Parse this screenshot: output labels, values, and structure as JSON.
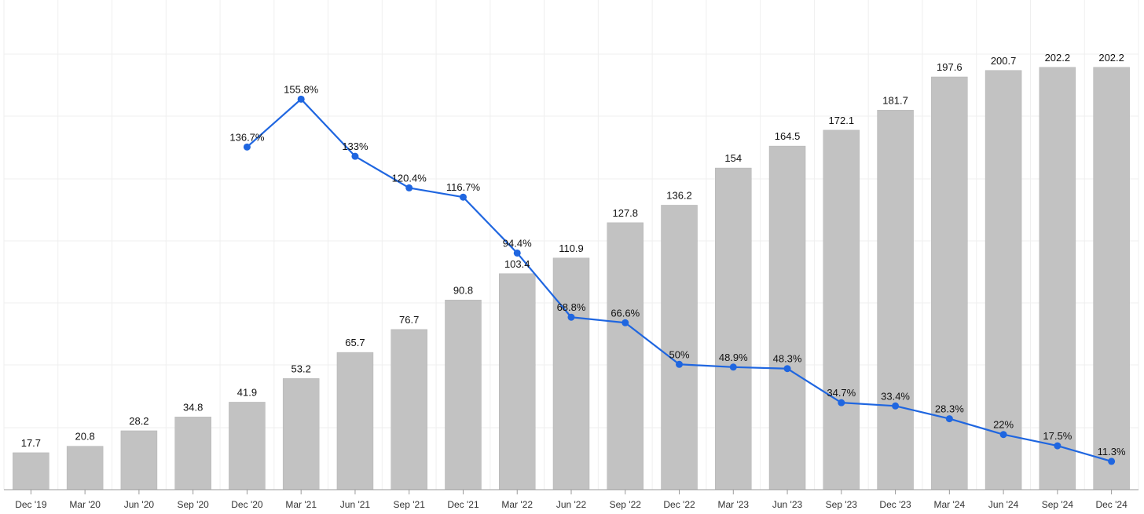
{
  "chart_data": {
    "type": "bar",
    "title": "",
    "xlabel": "",
    "ylabel": "",
    "grid": true,
    "legend": "none",
    "categories": [
      "Dec '19",
      "Mar '20",
      "Jun '20",
      "Sep '20",
      "Dec '20",
      "Mar '21",
      "Jun '21",
      "Sep '21",
      "Dec '21",
      "Mar '22",
      "Jun '22",
      "Sep '22",
      "Dec '22",
      "Mar '23",
      "Jun '23",
      "Sep '23",
      "Dec '23",
      "Mar '24",
      "Jun '24",
      "Sep '24",
      "Dec '24"
    ],
    "series": [
      {
        "type": "bar",
        "color": "#c2c2c2",
        "values": [
          17.7,
          20.8,
          28.2,
          34.8,
          41.9,
          53.2,
          65.7,
          76.7,
          90.8,
          103.4,
          110.9,
          127.8,
          136.2,
          154,
          164.5,
          172.1,
          181.7,
          197.6,
          200.7,
          202.2,
          202.2
        ],
        "labels": [
          "17.7",
          "20.8",
          "28.2",
          "34.8",
          "41.9",
          "53.2",
          "65.7",
          "76.7",
          "90.8",
          "103.4",
          "110.9",
          "127.8",
          "136.2",
          "154",
          "164.5",
          "172.1",
          "181.7",
          "197.6",
          "200.7",
          "202.2",
          "202.2"
        ]
      },
      {
        "type": "line",
        "color": "#1f66e0",
        "values": [
          null,
          null,
          null,
          null,
          136.7,
          155.8,
          133,
          120.4,
          116.7,
          94.4,
          68.8,
          66.6,
          50,
          48.9,
          48.3,
          34.7,
          33.4,
          28.3,
          22,
          17.5,
          11.3
        ],
        "labels": [
          null,
          null,
          null,
          null,
          "136.7%",
          "155.8%",
          "133%",
          "120.4%",
          "116.7%",
          "94.4%",
          "68.8%",
          "66.6%",
          "50%",
          "48.9%",
          "48.3%",
          "34.7%",
          "33.4%",
          "28.3%",
          "22%",
          "17.5%",
          "11.3%"
        ]
      }
    ],
    "ylim": [
      0,
      210
    ],
    "y2lim": [
      0,
      175
    ]
  }
}
